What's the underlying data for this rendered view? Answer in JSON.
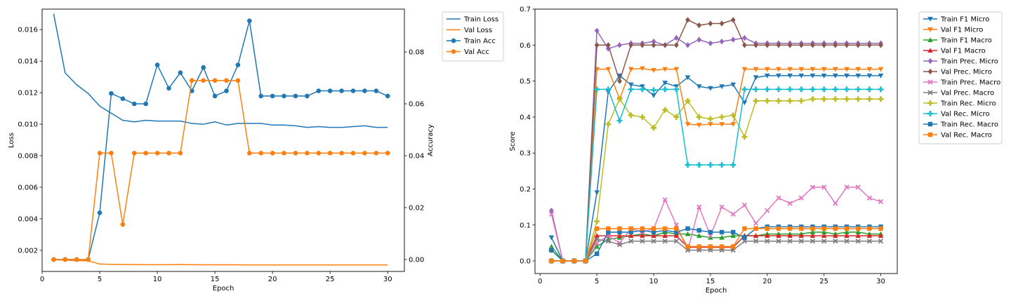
{
  "chart_data": [
    {
      "type": "line",
      "xlabel": "Epoch",
      "ylabel": "Loss",
      "ylabel_right": "Accuracy",
      "x": [
        1,
        2,
        3,
        4,
        5,
        6,
        7,
        8,
        9,
        10,
        11,
        12,
        13,
        14,
        15,
        16,
        17,
        18,
        19,
        20,
        21,
        22,
        23,
        24,
        25,
        26,
        27,
        28,
        29,
        30
      ],
      "xlim": [
        0,
        31.45
      ],
      "xticks": [
        "0",
        "5",
        "10",
        "15",
        "20",
        "25",
        "30"
      ],
      "ylim_left": [
        0.00066,
        0.0173
      ],
      "yticks_left": [
        "0.002",
        "0.004",
        "0.006",
        "0.008",
        "0.010",
        "0.012",
        "0.014",
        "0.016"
      ],
      "ylim_right": [
        -0.0046,
        0.0965
      ],
      "yticks_right": [
        "0.00",
        "0.02",
        "0.04",
        "0.06",
        "0.08"
      ],
      "legend_position": "outside-top-right",
      "grid": false,
      "series": [
        {
          "name": "Train Loss",
          "axis": "left",
          "marker": "none",
          "color": "#1f77b4",
          "values": [
            0.017,
            0.01325,
            0.0125,
            0.01195,
            0.01115,
            0.0107,
            0.01025,
            0.01015,
            0.01025,
            0.0102,
            0.0102,
            0.0102,
            0.01005,
            0.01,
            0.01015,
            0.00995,
            0.01005,
            0.01005,
            0.01005,
            0.00995,
            0.00995,
            0.0099,
            0.0098,
            0.00985,
            0.0098,
            0.0098,
            0.00985,
            0.0099,
            0.0098,
            0.0098
          ]
        },
        {
          "name": "Val Loss",
          "axis": "left",
          "marker": "none",
          "color": "#ff7f0e",
          "values": [
            0.0014,
            0.00138,
            0.00134,
            0.00134,
            0.00113,
            0.00111,
            0.0011,
            0.0011,
            0.00109,
            0.00109,
            0.00109,
            0.0011,
            0.00109,
            0.00108,
            0.00108,
            0.00108,
            0.00108,
            0.00107,
            0.00107,
            0.00107,
            0.00107,
            0.00107,
            0.00107,
            0.00107,
            0.00107,
            0.00107,
            0.00107,
            0.00107,
            0.00107,
            0.00107
          ]
        },
        {
          "name": "Train Acc",
          "axis": "right",
          "marker": "circle",
          "color": "#1f77b4",
          "values": [
            0.0,
            0.0,
            0.0,
            0.0,
            0.018,
            0.064,
            0.062,
            0.06,
            0.06,
            0.075,
            0.066,
            0.072,
            0.065,
            0.074,
            0.063,
            0.065,
            0.075,
            0.092,
            0.063,
            0.063,
            0.063,
            0.063,
            0.063,
            0.065,
            0.065,
            0.065,
            0.065,
            0.065,
            0.065,
            0.063
          ]
        },
        {
          "name": "Val Acc",
          "axis": "right",
          "marker": "circle",
          "color": "#ff7f0e",
          "values": [
            0.0,
            0.0,
            0.0,
            0.0,
            0.041,
            0.041,
            0.0135,
            0.041,
            0.041,
            0.041,
            0.041,
            0.041,
            0.069,
            0.069,
            0.069,
            0.069,
            0.069,
            0.041,
            0.041,
            0.041,
            0.041,
            0.041,
            0.041,
            0.041,
            0.041,
            0.041,
            0.041,
            0.041,
            0.041,
            0.041
          ]
        }
      ]
    },
    {
      "type": "line",
      "xlabel": "Epoch",
      "ylabel": "Score",
      "x": [
        1,
        2,
        3,
        4,
        5,
        6,
        7,
        8,
        9,
        10,
        11,
        12,
        13,
        14,
        15,
        16,
        17,
        18,
        19,
        20,
        21,
        22,
        23,
        24,
        25,
        26,
        27,
        28,
        29,
        30
      ],
      "xlim": [
        -0.45,
        31.45
      ],
      "xticks": [
        "0",
        "5",
        "10",
        "15",
        "20",
        "25",
        "30"
      ],
      "ylim": [
        -0.035,
        0.7
      ],
      "yticks": [
        "0.0",
        "0.1",
        "0.2",
        "0.3",
        "0.4",
        "0.5",
        "0.6",
        "0.7"
      ],
      "legend_position": "outside-top-right",
      "grid": false,
      "series": [
        {
          "name": "Train F1 Micro",
          "marker": "triangle-down",
          "color": "#1f77b4",
          "values": [
            0.065,
            0.0,
            0.0,
            0.0,
            0.19,
            0.47,
            0.515,
            0.49,
            0.485,
            0.46,
            0.495,
            0.485,
            0.51,
            0.485,
            0.48,
            0.485,
            0.49,
            0.44,
            0.51,
            0.515,
            0.515,
            0.515,
            0.515,
            0.515,
            0.515,
            0.515,
            0.515,
            0.515,
            0.515,
            0.515
          ]
        },
        {
          "name": "Val F1 Micro",
          "marker": "triangle-down",
          "color": "#ff7f0e",
          "values": [
            0.0,
            0.0,
            0.0,
            0.0,
            0.533,
            0.533,
            0.45,
            0.533,
            0.535,
            0.53,
            0.533,
            0.533,
            0.38,
            0.378,
            0.38,
            0.38,
            0.38,
            0.533,
            0.533,
            0.533,
            0.533,
            0.533,
            0.533,
            0.533,
            0.533,
            0.533,
            0.533,
            0.533,
            0.533,
            0.533
          ]
        },
        {
          "name": "Train F1 Macro",
          "marker": "triangle-up",
          "color": "#2ca02c",
          "values": [
            0.04,
            0.0,
            0.0,
            0.0,
            0.04,
            0.06,
            0.065,
            0.07,
            0.075,
            0.07,
            0.08,
            0.075,
            0.075,
            0.07,
            0.065,
            0.065,
            0.07,
            0.07,
            0.07,
            0.075,
            0.075,
            0.075,
            0.075,
            0.08,
            0.08,
            0.075,
            0.08,
            0.08,
            0.075,
            0.075
          ]
        },
        {
          "name": "Val F1 Macro",
          "marker": "triangle-up",
          "color": "#d62728",
          "values": [
            0.0,
            0.0,
            0.0,
            0.0,
            0.07,
            0.07,
            0.07,
            0.07,
            0.07,
            0.07,
            0.07,
            0.07,
            0.038,
            0.038,
            0.038,
            0.038,
            0.038,
            0.07,
            0.07,
            0.07,
            0.07,
            0.07,
            0.07,
            0.07,
            0.07,
            0.07,
            0.07,
            0.07,
            0.07,
            0.07
          ]
        },
        {
          "name": "Train Prec. Micro",
          "marker": "diamond",
          "color": "#9467bd",
          "values": [
            0.14,
            0.0,
            0.0,
            0.0,
            0.64,
            0.59,
            0.6,
            0.605,
            0.605,
            0.61,
            0.6,
            0.62,
            0.6,
            0.615,
            0.605,
            0.61,
            0.615,
            0.62,
            0.605,
            0.605,
            0.605,
            0.605,
            0.605,
            0.605,
            0.605,
            0.605,
            0.605,
            0.605,
            0.605,
            0.605
          ]
        },
        {
          "name": "Val Prec. Micro",
          "marker": "diamond",
          "color": "#8c564b",
          "values": [
            0.0,
            0.0,
            0.0,
            0.0,
            0.6,
            0.6,
            0.5,
            0.6,
            0.6,
            0.6,
            0.6,
            0.6,
            0.67,
            0.655,
            0.66,
            0.66,
            0.67,
            0.6,
            0.6,
            0.6,
            0.6,
            0.6,
            0.6,
            0.6,
            0.6,
            0.6,
            0.6,
            0.6,
            0.6,
            0.6
          ]
        },
        {
          "name": "Train Prec. Macro",
          "marker": "x-filled",
          "color": "#e377c2",
          "values": [
            0.13,
            0.0,
            0.0,
            0.0,
            0.05,
            0.07,
            0.05,
            0.09,
            0.08,
            0.09,
            0.17,
            0.1,
            0.03,
            0.15,
            0.07,
            0.15,
            0.13,
            0.155,
            0.105,
            0.14,
            0.175,
            0.16,
            0.175,
            0.205,
            0.205,
            0.16,
            0.205,
            0.205,
            0.175,
            0.165
          ]
        },
        {
          "name": "Val Prec. Macro",
          "marker": "x-filled",
          "color": "#7f7f7f",
          "values": [
            0.0,
            0.0,
            0.0,
            0.0,
            0.06,
            0.055,
            0.045,
            0.055,
            0.055,
            0.055,
            0.055,
            0.055,
            0.03,
            0.03,
            0.03,
            0.03,
            0.03,
            0.055,
            0.055,
            0.055,
            0.055,
            0.055,
            0.055,
            0.055,
            0.055,
            0.055,
            0.055,
            0.055,
            0.055,
            0.055
          ]
        },
        {
          "name": "Train Rec. Micro",
          "marker": "plus-filled",
          "color": "#bcbd22",
          "values": [
            0.03,
            0.0,
            0.0,
            0.0,
            0.11,
            0.38,
            0.45,
            0.405,
            0.4,
            0.37,
            0.42,
            0.4,
            0.445,
            0.4,
            0.395,
            0.4,
            0.405,
            0.345,
            0.445,
            0.445,
            0.445,
            0.445,
            0.445,
            0.45,
            0.45,
            0.45,
            0.45,
            0.45,
            0.45,
            0.45
          ]
        },
        {
          "name": "Val Rec. Micro",
          "marker": "plus-filled",
          "color": "#17becf",
          "values": [
            0.0,
            0.0,
            0.0,
            0.0,
            0.477,
            0.477,
            0.39,
            0.477,
            0.477,
            0.475,
            0.477,
            0.477,
            0.267,
            0.267,
            0.267,
            0.267,
            0.267,
            0.477,
            0.477,
            0.477,
            0.477,
            0.477,
            0.477,
            0.477,
            0.477,
            0.477,
            0.477,
            0.477,
            0.477,
            0.477
          ]
        },
        {
          "name": "Train Rec. Macro",
          "marker": "square",
          "color": "#1f77b4",
          "values": [
            0.03,
            0.0,
            0.0,
            0.0,
            0.02,
            0.08,
            0.08,
            0.08,
            0.085,
            0.08,
            0.085,
            0.08,
            0.09,
            0.085,
            0.08,
            0.08,
            0.08,
            0.065,
            0.09,
            0.095,
            0.095,
            0.095,
            0.095,
            0.095,
            0.095,
            0.095,
            0.095,
            0.095,
            0.095,
            0.095
          ]
        },
        {
          "name": "Val Rec. Macro",
          "marker": "square",
          "color": "#ff7f0e",
          "values": [
            0.0,
            0.0,
            0.0,
            0.0,
            0.09,
            0.09,
            0.09,
            0.09,
            0.09,
            0.09,
            0.09,
            0.09,
            0.04,
            0.04,
            0.04,
            0.04,
            0.04,
            0.09,
            0.09,
            0.09,
            0.09,
            0.09,
            0.09,
            0.09,
            0.09,
            0.09,
            0.09,
            0.09,
            0.09,
            0.09
          ]
        }
      ]
    }
  ]
}
